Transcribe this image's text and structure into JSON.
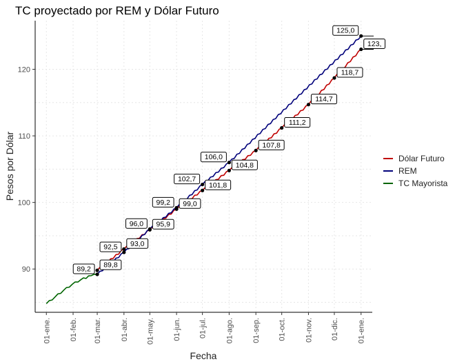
{
  "chart_data": {
    "type": "line",
    "title": "TC proyectado por REM y Dólar Futuro",
    "xlabel": "Fecha",
    "ylabel": "Pesos por Dólar",
    "x_ticks": [
      "01-ene.",
      "01-feb.",
      "01-mar.",
      "01-abr.",
      "01-may.",
      "01-jun.",
      "01-jul.",
      "01-ago.",
      "01-sep.",
      "01-oct.",
      "01-nov.",
      "01-dic.",
      "01-ene."
    ],
    "y_ticks": [
      90,
      100,
      110,
      120
    ],
    "ylim": [
      83.5,
      127.3
    ],
    "grid": true,
    "legend_position": "right",
    "series": [
      {
        "name": "Dólar Futuro",
        "color": "#c00000",
        "points": [
          [
            59,
            89.8
          ],
          [
            90,
            93.0
          ],
          [
            120,
            95.9
          ],
          [
            151,
            99.0
          ],
          [
            181,
            101.8
          ],
          [
            212,
            104.8
          ],
          [
            243,
            107.8
          ],
          [
            273,
            111.2
          ],
          [
            304,
            114.7
          ],
          [
            334,
            118.7
          ],
          [
            365,
            123.0
          ]
        ]
      },
      {
        "name": "REM",
        "color": "#00007a",
        "points": [
          [
            59,
            89.2
          ],
          [
            90,
            92.5
          ],
          [
            120,
            96.0
          ],
          [
            151,
            99.2
          ],
          [
            181,
            102.7
          ],
          [
            212,
            106.0
          ],
          [
            365,
            125.0
          ]
        ]
      },
      {
        "name": "TC Mayorista",
        "color": "#006400",
        "points": [
          [
            0,
            84.8
          ],
          [
            10,
            85.8
          ],
          [
            20,
            86.8
          ],
          [
            30,
            87.7
          ],
          [
            40,
            88.4
          ],
          [
            52,
            89.0
          ],
          [
            59,
            89.2
          ]
        ]
      }
    ],
    "labels": {
      "futuro": [
        {
          "day": 59,
          "value": 89.8,
          "text": "89,8"
        },
        {
          "day": 90,
          "value": 93.0,
          "text": "93,0"
        },
        {
          "day": 120,
          "value": 95.9,
          "text": "95,9"
        },
        {
          "day": 151,
          "value": 99.0,
          "text": "99,0"
        },
        {
          "day": 181,
          "value": 101.8,
          "text": "101,8"
        },
        {
          "day": 212,
          "value": 104.8,
          "text": "104,8"
        },
        {
          "day": 243,
          "value": 107.8,
          "text": "107,8"
        },
        {
          "day": 273,
          "value": 111.2,
          "text": "111,2"
        },
        {
          "day": 304,
          "value": 114.7,
          "text": "114,7"
        },
        {
          "day": 334,
          "value": 118.7,
          "text": "118,7"
        },
        {
          "day": 365,
          "value": 123.0,
          "text": "123,"
        }
      ],
      "rem": [
        {
          "day": 59,
          "value": 89.2,
          "text": "89,2"
        },
        {
          "day": 90,
          "value": 92.5,
          "text": "92,5"
        },
        {
          "day": 120,
          "value": 96.0,
          "text": "96,0"
        },
        {
          "day": 151,
          "value": 99.2,
          "text": "99,2"
        },
        {
          "day": 181,
          "value": 102.7,
          "text": "102,7"
        },
        {
          "day": 212,
          "value": 106.0,
          "text": "106,0"
        },
        {
          "day": 365,
          "value": 125.0,
          "text": "125,0"
        }
      ]
    }
  }
}
